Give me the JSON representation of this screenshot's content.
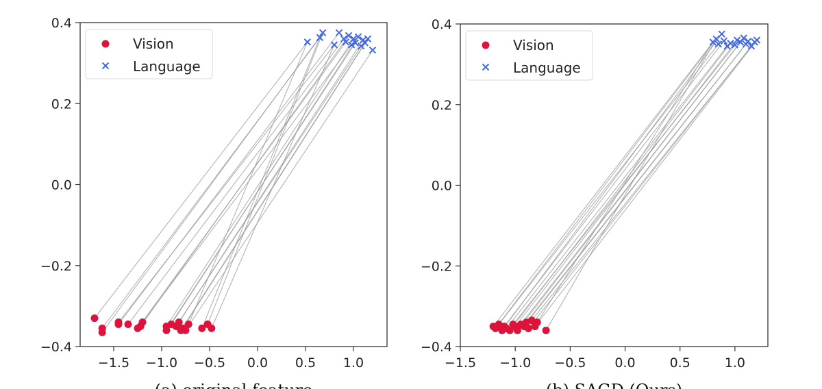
{
  "chart_data": [
    {
      "type": "scatter",
      "xlim": [
        -1.85,
        1.35
      ],
      "ylim": [
        -0.4,
        0.4
      ],
      "xticks": [
        -1.5,
        -1.0,
        -0.5,
        0.0,
        0.5,
        1.0
      ],
      "yticks": [
        -0.4,
        -0.2,
        0.0,
        0.2,
        0.4
      ],
      "xtick_labels": [
        "−1.5",
        "−1.0",
        "−0.5",
        "0.0",
        "0.5",
        "1.0"
      ],
      "ytick_labels": [
        "−0.4",
        "−0.2",
        "0.0",
        "0.2",
        "0.4"
      ],
      "legend_position": "top-left",
      "grid": false,
      "caption": "(a) original feature",
      "series": [
        {
          "name": "Vision",
          "marker": "circle",
          "color": "#dc143c",
          "points": [
            [
              -1.7,
              -0.33
            ],
            [
              -1.62,
              -0.355
            ],
            [
              -1.62,
              -0.365
            ],
            [
              -1.45,
              -0.34
            ],
            [
              -1.45,
              -0.345
            ],
            [
              -1.35,
              -0.345
            ],
            [
              -1.25,
              -0.355
            ],
            [
              -1.22,
              -0.35
            ],
            [
              -1.2,
              -0.34
            ],
            [
              -0.95,
              -0.35
            ],
            [
              -0.95,
              -0.36
            ],
            [
              -0.9,
              -0.345
            ],
            [
              -0.85,
              -0.35
            ],
            [
              -0.82,
              -0.34
            ],
            [
              -0.8,
              -0.36
            ],
            [
              -0.78,
              -0.355
            ],
            [
              -0.75,
              -0.36
            ],
            [
              -0.72,
              -0.345
            ],
            [
              -0.58,
              -0.355
            ],
            [
              -0.52,
              -0.345
            ],
            [
              -0.48,
              -0.355
            ]
          ]
        },
        {
          "name": "Language",
          "marker": "x",
          "color": "#4169e1",
          "points": [
            [
              0.52,
              0.352
            ],
            [
              0.65,
              0.363
            ],
            [
              0.68,
              0.375
            ],
            [
              0.8,
              0.345
            ],
            [
              0.85,
              0.375
            ],
            [
              0.9,
              0.36
            ],
            [
              0.92,
              0.352
            ],
            [
              0.95,
              0.368
            ],
            [
              0.98,
              0.345
            ],
            [
              1.0,
              0.36
            ],
            [
              1.02,
              0.35
            ],
            [
              1.05,
              0.365
            ],
            [
              1.08,
              0.342
            ],
            [
              1.1,
              0.357
            ],
            [
              1.12,
              0.35
            ],
            [
              1.15,
              0.36
            ],
            [
              1.2,
              0.332
            ]
          ]
        }
      ],
      "connections": [
        [
          0,
          0
        ],
        [
          1,
          1
        ],
        [
          2,
          2
        ],
        [
          3,
          3
        ],
        [
          4,
          4
        ],
        [
          5,
          5
        ],
        [
          6,
          6
        ],
        [
          7,
          7
        ],
        [
          8,
          8
        ],
        [
          9,
          9
        ],
        [
          10,
          10
        ],
        [
          11,
          11
        ],
        [
          12,
          12
        ],
        [
          13,
          13
        ],
        [
          14,
          14
        ],
        [
          15,
          15
        ],
        [
          16,
          16
        ],
        [
          17,
          0
        ],
        [
          18,
          1
        ],
        [
          19,
          2
        ],
        [
          20,
          3
        ]
      ]
    },
    {
      "type": "scatter",
      "xlim": [
        -1.5,
        1.3
      ],
      "ylim": [
        -0.4,
        0.4
      ],
      "xticks": [
        -1.5,
        -1.0,
        -0.5,
        0.0,
        0.5,
        1.0
      ],
      "yticks": [
        -0.4,
        -0.2,
        0.0,
        0.2,
        0.4
      ],
      "xtick_labels": [
        "−1.5",
        "−1.0",
        "−0.5",
        "0.0",
        "0.5",
        "1.0"
      ],
      "ytick_labels": [
        "−0.4",
        "−0.2",
        "0.0",
        "0.2",
        "0.4"
      ],
      "legend_position": "top-left",
      "grid": false,
      "caption": "(b) SAGD (Ours)",
      "series": [
        {
          "name": "Vision",
          "marker": "circle",
          "color": "#dc143c",
          "points": [
            [
              -1.2,
              -0.35
            ],
            [
              -1.18,
              -0.355
            ],
            [
              -1.15,
              -0.345
            ],
            [
              -1.12,
              -0.36
            ],
            [
              -1.1,
              -0.35
            ],
            [
              -1.08,
              -0.355
            ],
            [
              -1.05,
              -0.36
            ],
            [
              -1.02,
              -0.345
            ],
            [
              -1.0,
              -0.35
            ],
            [
              -0.98,
              -0.36
            ],
            [
              -0.95,
              -0.345
            ],
            [
              -0.92,
              -0.35
            ],
            [
              -0.9,
              -0.34
            ],
            [
              -0.88,
              -0.355
            ],
            [
              -0.85,
              -0.335
            ],
            [
              -0.82,
              -0.35
            ],
            [
              -0.8,
              -0.34
            ],
            [
              -0.72,
              -0.36
            ]
          ]
        },
        {
          "name": "Language",
          "marker": "x",
          "color": "#4169e1",
          "points": [
            [
              0.8,
              0.355
            ],
            [
              0.83,
              0.363
            ],
            [
              0.85,
              0.35
            ],
            [
              0.88,
              0.375
            ],
            [
              0.9,
              0.358
            ],
            [
              0.93,
              0.345
            ],
            [
              0.96,
              0.352
            ],
            [
              1.0,
              0.348
            ],
            [
              1.02,
              0.36
            ],
            [
              1.05,
              0.355
            ],
            [
              1.08,
              0.365
            ],
            [
              1.1,
              0.35
            ],
            [
              1.12,
              0.357
            ],
            [
              1.15,
              0.345
            ],
            [
              1.18,
              0.355
            ],
            [
              1.2,
              0.36
            ]
          ]
        }
      ],
      "connections": [
        [
          0,
          0
        ],
        [
          1,
          1
        ],
        [
          2,
          2
        ],
        [
          3,
          3
        ],
        [
          4,
          4
        ],
        [
          5,
          5
        ],
        [
          6,
          6
        ],
        [
          7,
          7
        ],
        [
          8,
          8
        ],
        [
          9,
          9
        ],
        [
          10,
          10
        ],
        [
          11,
          11
        ],
        [
          12,
          12
        ],
        [
          13,
          13
        ],
        [
          14,
          14
        ],
        [
          15,
          15
        ],
        [
          16,
          0
        ],
        [
          17,
          1
        ]
      ]
    }
  ]
}
